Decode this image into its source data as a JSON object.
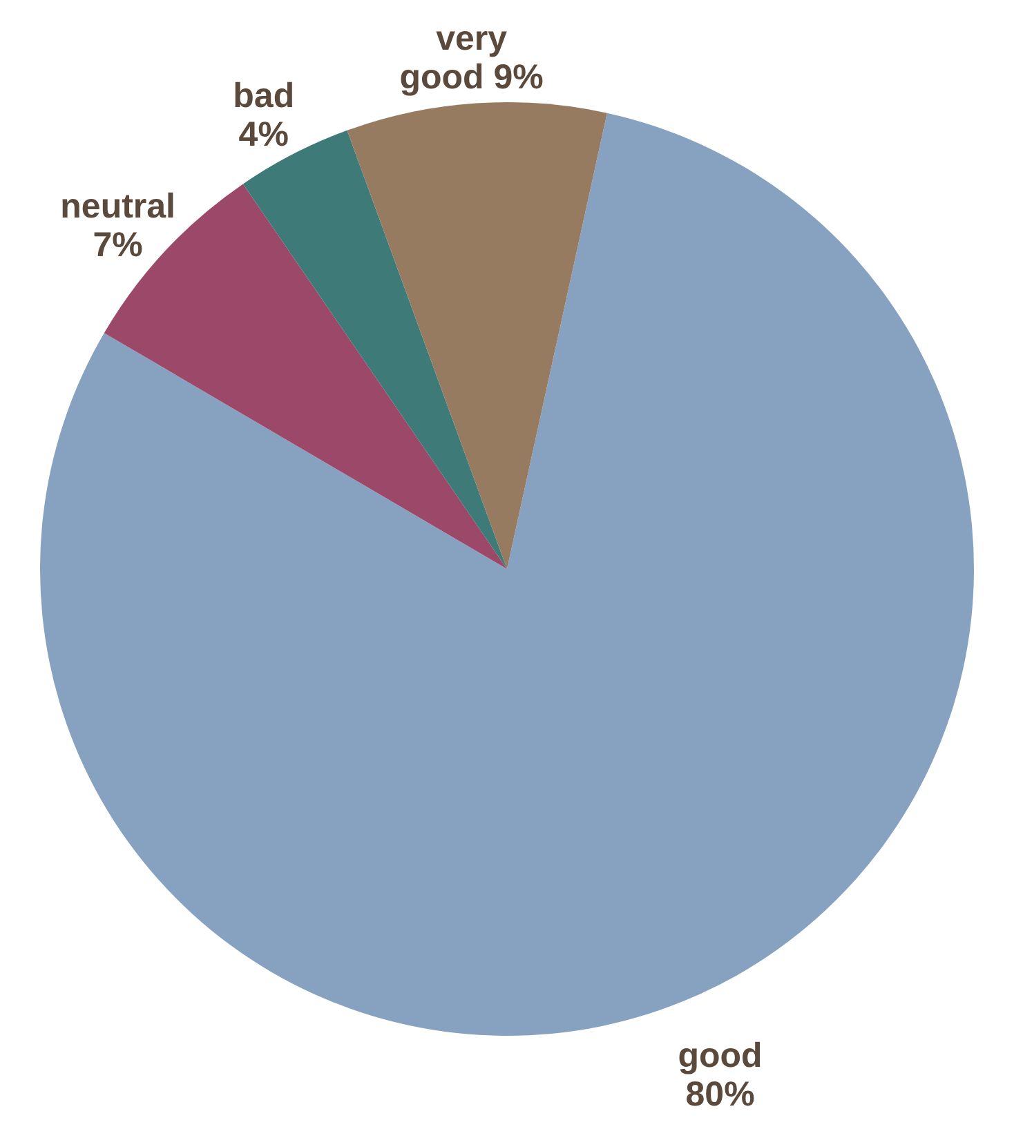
{
  "chart_data": {
    "type": "pie",
    "categories": [
      "good",
      "neutral",
      "bad",
      "very good"
    ],
    "values": [
      80,
      7,
      4,
      9
    ],
    "colors": [
      "#87a2c1",
      "#9c4868",
      "#3d7a78",
      "#977b61"
    ],
    "value_labels": [
      "80%",
      "7%",
      "4%",
      "9%"
    ]
  }
}
